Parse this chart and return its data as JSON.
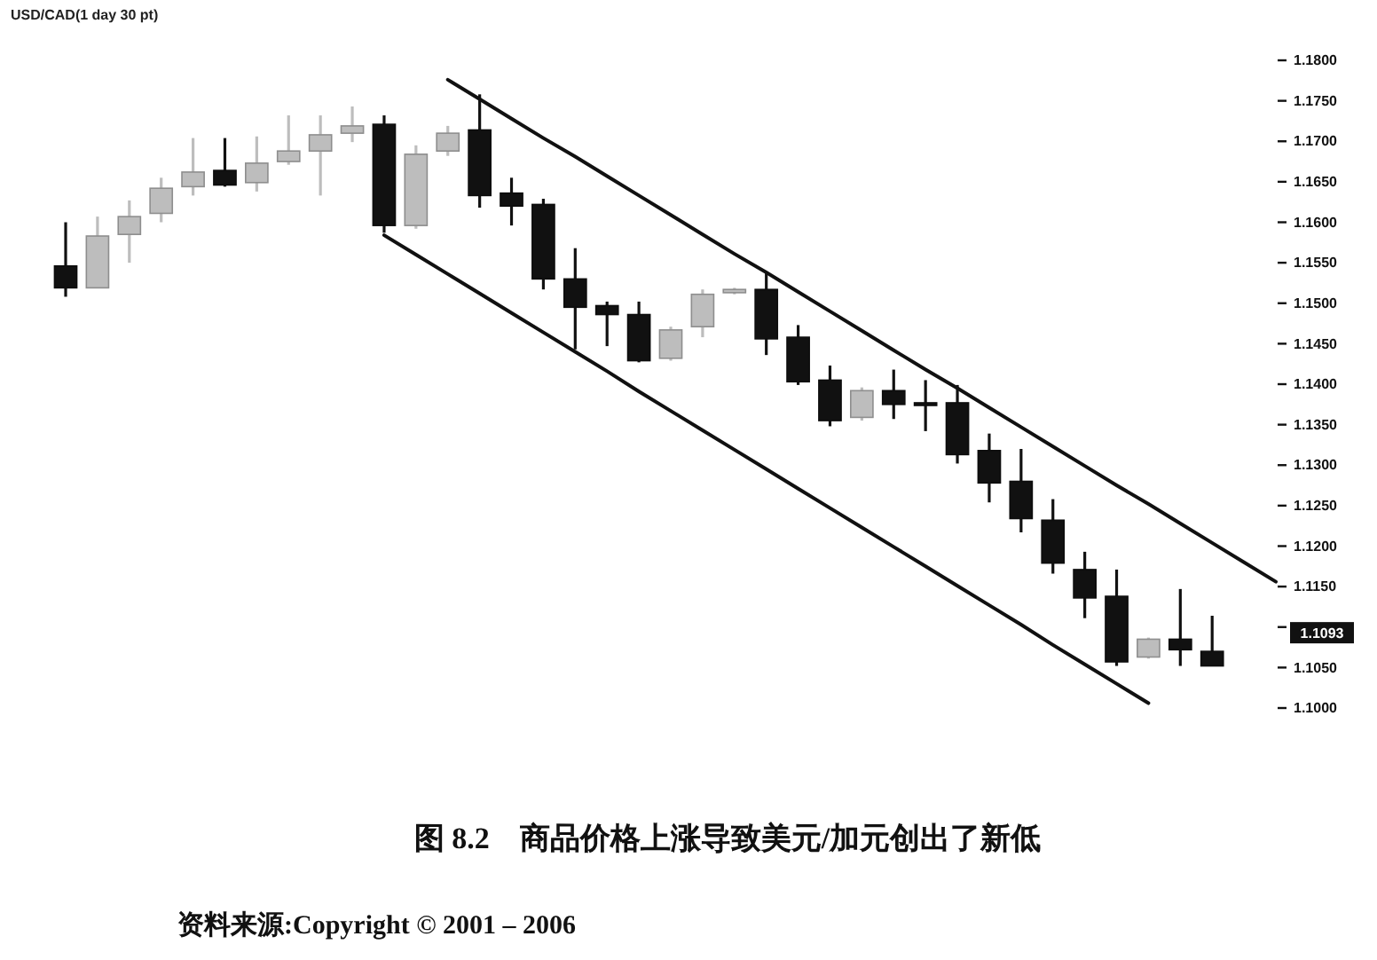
{
  "chart_data": {
    "type": "candlestick",
    "subtitle": "USD/CAD(1 day 30 pt)",
    "title": "图 8.2　商品价格上涨导致美元/加元创出了新低",
    "annotations": [
      "资料来源:Copyright © 2001 – 2006",
      {
        "text": "1.1093",
        "y": 1.1093
      }
    ],
    "categories": [
      null,
      null,
      null,
      null,
      null,
      null,
      null,
      null,
      null,
      null,
      null,
      null,
      null,
      null,
      null,
      null,
      null,
      null,
      null,
      null,
      null,
      null,
      null,
      null,
      null,
      null,
      null,
      null,
      null,
      null,
      null,
      null,
      null,
      null,
      null,
      null,
      null,
      null,
      null
    ],
    "ohlc": [
      [
        1.1546,
        1.16,
        1.1508,
        1.1519
      ],
      [
        1.1519,
        1.1607,
        1.1519,
        1.1583
      ],
      [
        1.1585,
        1.1627,
        1.155,
        1.1607
      ],
      [
        1.1611,
        1.1655,
        1.16,
        1.1642
      ],
      [
        1.1644,
        1.1704,
        1.1633,
        1.1662
      ],
      [
        1.1664,
        1.1704,
        1.1644,
        1.1646
      ],
      [
        1.1649,
        1.1706,
        1.1638,
        1.1673
      ],
      [
        1.1675,
        1.1732,
        1.1671,
        1.1688
      ],
      [
        1.1688,
        1.1732,
        1.1633,
        1.1708
      ],
      [
        1.171,
        1.1743,
        1.1699,
        1.1719
      ],
      [
        1.1721,
        1.1732,
        1.1587,
        1.1596
      ],
      [
        1.1596,
        1.1695,
        1.1592,
        1.1684
      ],
      [
        1.1688,
        1.1719,
        1.1682,
        1.171
      ],
      [
        1.1714,
        1.1758,
        1.1618,
        1.1633
      ],
      [
        1.1636,
        1.1655,
        1.1596,
        1.162
      ],
      [
        1.1622,
        1.1629,
        1.1517,
        1.153
      ],
      [
        1.153,
        1.1568,
        1.1443,
        1.1495
      ],
      [
        1.1497,
        1.1502,
        1.1447,
        1.1486
      ],
      [
        1.1486,
        1.1502,
        1.1427,
        1.1429
      ],
      [
        1.1432,
        1.1471,
        1.1429,
        1.1467
      ],
      [
        1.1471,
        1.1517,
        1.1458,
        1.1511
      ],
      [
        1.1513,
        1.1519,
        1.1511,
        1.1517
      ],
      [
        1.1517,
        1.1539,
        1.1436,
        1.1456
      ],
      [
        1.1458,
        1.1473,
        1.1399,
        1.1403
      ],
      [
        1.1405,
        1.1423,
        1.1348,
        1.1355
      ],
      [
        1.1359,
        1.1396,
        1.1355,
        1.1392
      ],
      [
        1.1392,
        1.1418,
        1.1357,
        1.1375
      ],
      [
        1.1377,
        1.1405,
        1.1342,
        1.1376
      ],
      [
        1.1377,
        1.1399,
        1.1302,
        1.1313
      ],
      [
        1.1318,
        1.1339,
        1.1254,
        1.1278
      ],
      [
        1.128,
        1.132,
        1.1217,
        1.1234
      ],
      [
        1.1232,
        1.1258,
        1.1166,
        1.1179
      ],
      [
        1.1171,
        1.1193,
        1.1111,
        1.1136
      ],
      [
        1.1138,
        1.1171,
        1.1052,
        1.1057
      ],
      [
        1.1063,
        1.1087,
        1.1061,
        1.1085
      ],
      [
        1.1085,
        1.1147,
        1.1052,
        1.1072
      ],
      [
        1.107,
        1.1114,
        1.1052,
        1.1052
      ],
      null,
      null
    ],
    "colors": [
      "#111111",
      "#bdbdbd",
      "#bdbdbd",
      "#bdbdbd",
      "#bdbdbd",
      "#111111",
      "#bdbdbd",
      "#bdbdbd",
      "#bdbdbd",
      "#bdbdbd",
      "#111111",
      "#bdbdbd",
      "#bdbdbd",
      "#111111",
      "#111111",
      "#111111",
      "#111111",
      "#111111",
      "#111111",
      "#bdbdbd",
      "#bdbdbd",
      "#bdbdbd",
      "#111111",
      "#111111",
      "#111111",
      "#bdbdbd",
      "#111111",
      "#111111",
      "#111111",
      "#111111",
      "#111111",
      "#111111",
      "#111111",
      "#111111",
      "#bdbdbd",
      "#111111",
      "#111111",
      null,
      null
    ],
    "series": [
      {
        "type": "line",
        "color": "#111111",
        "values": [
          null,
          null,
          null,
          null,
          null,
          null,
          null,
          null,
          null,
          null,
          null,
          null,
          1.1776,
          1.1752,
          1.1728,
          1.1704,
          1.1681,
          1.1657,
          1.1633,
          1.1609,
          1.1585,
          1.1561,
          1.1538,
          1.1514,
          1.149,
          1.1466,
          1.1442,
          1.1418,
          1.1395,
          1.1371,
          1.1347,
          1.1323,
          1.1299,
          1.1275,
          1.1252,
          1.1228,
          1.1204,
          1.118,
          1.1156
        ]
      },
      {
        "type": "line",
        "color": "#111111",
        "values": [
          null,
          null,
          null,
          null,
          null,
          null,
          null,
          null,
          null,
          null,
          1.1584,
          1.156,
          1.1536,
          1.1512,
          1.1488,
          1.1464,
          1.144,
          1.1416,
          1.1391,
          1.1367,
          1.1343,
          1.1319,
          1.1295,
          1.1271,
          1.1247,
          1.1223,
          1.1199,
          1.1175,
          1.1151,
          1.1127,
          1.1103,
          1.1078,
          1.1054,
          1.103,
          1.1006,
          null,
          null,
          null,
          null
        ]
      }
    ],
    "ylim": [
      1.1,
      1.18
    ],
    "yticks": [
      {
        "value": 1.1,
        "label": "1.1000"
      },
      {
        "value": 1.105,
        "label": "1.1050"
      },
      {
        "value": 1.11,
        "label": null
      },
      {
        "value": 1.115,
        "label": "1.1150"
      },
      {
        "value": 1.12,
        "label": "1.1200"
      },
      {
        "value": 1.125,
        "label": "1.1250"
      },
      {
        "value": 1.13,
        "label": "1.1300"
      },
      {
        "value": 1.135,
        "label": "1.1350"
      },
      {
        "value": 1.14,
        "label": "1.1400"
      },
      {
        "value": 1.145,
        "label": "1.1450"
      },
      {
        "value": 1.15,
        "label": "1.1500"
      },
      {
        "value": 1.155,
        "label": "1.1550"
      },
      {
        "value": 1.16,
        "label": "1.1600"
      },
      {
        "value": 1.165,
        "label": "1.1650"
      },
      {
        "value": 1.17,
        "label": "1.1700"
      },
      {
        "value": 1.175,
        "label": "1.1750"
      },
      {
        "value": 1.18,
        "label": "1.1800"
      }
    ],
    "marker": "none",
    "line_style": "solid",
    "tick_labels": "y"
  }
}
